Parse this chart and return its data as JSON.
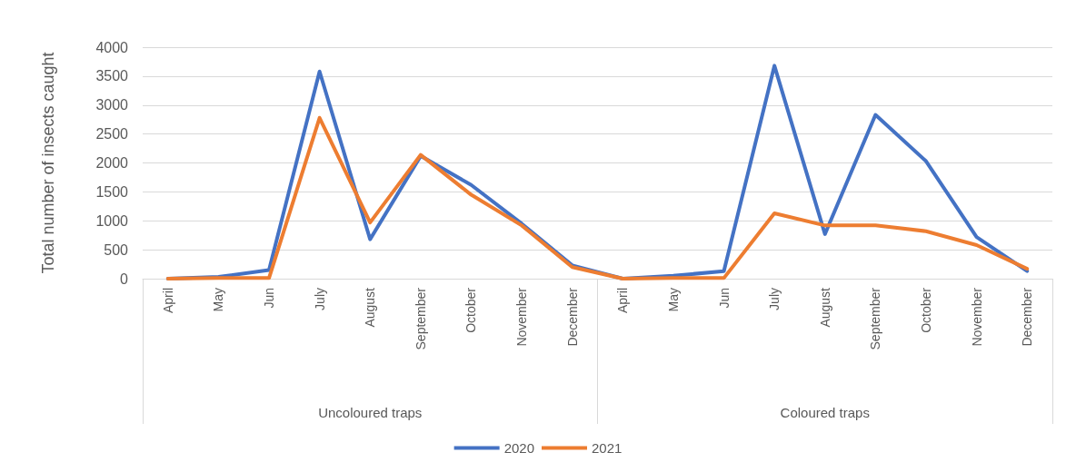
{
  "chart_data": {
    "type": "line",
    "ylabel": "Total number of insects caught",
    "categories": [
      "April",
      "May",
      "Jun",
      "July",
      "August",
      "September",
      "October",
      "November",
      "December",
      "April",
      "May",
      "Jun",
      "July",
      "August",
      "September",
      "October",
      "November",
      "December"
    ],
    "annotations": [
      "Uncoloured traps",
      "Coloured traps"
    ],
    "series": [
      {
        "name": "2020",
        "color": "#4472c4",
        "values": [
          0,
          30,
          150,
          3580,
          680,
          2120,
          1620,
          950,
          230,
          0,
          50,
          130,
          3680,
          770,
          2830,
          2030,
          720,
          130
        ]
      },
      {
        "name": "2021",
        "color": "#ed7d31",
        "values": [
          0,
          10,
          10,
          2780,
          970,
          2140,
          1450,
          920,
          200,
          0,
          10,
          10,
          1130,
          920,
          920,
          820,
          580,
          170
        ]
      }
    ],
    "ylim": [
      0,
      4000
    ],
    "yticks": [
      0,
      500,
      1000,
      1500,
      2000,
      2500,
      3000,
      3500,
      4000
    ],
    "grid": "y",
    "legend": "bottom",
    "marker": "none",
    "line_style": "solid"
  }
}
